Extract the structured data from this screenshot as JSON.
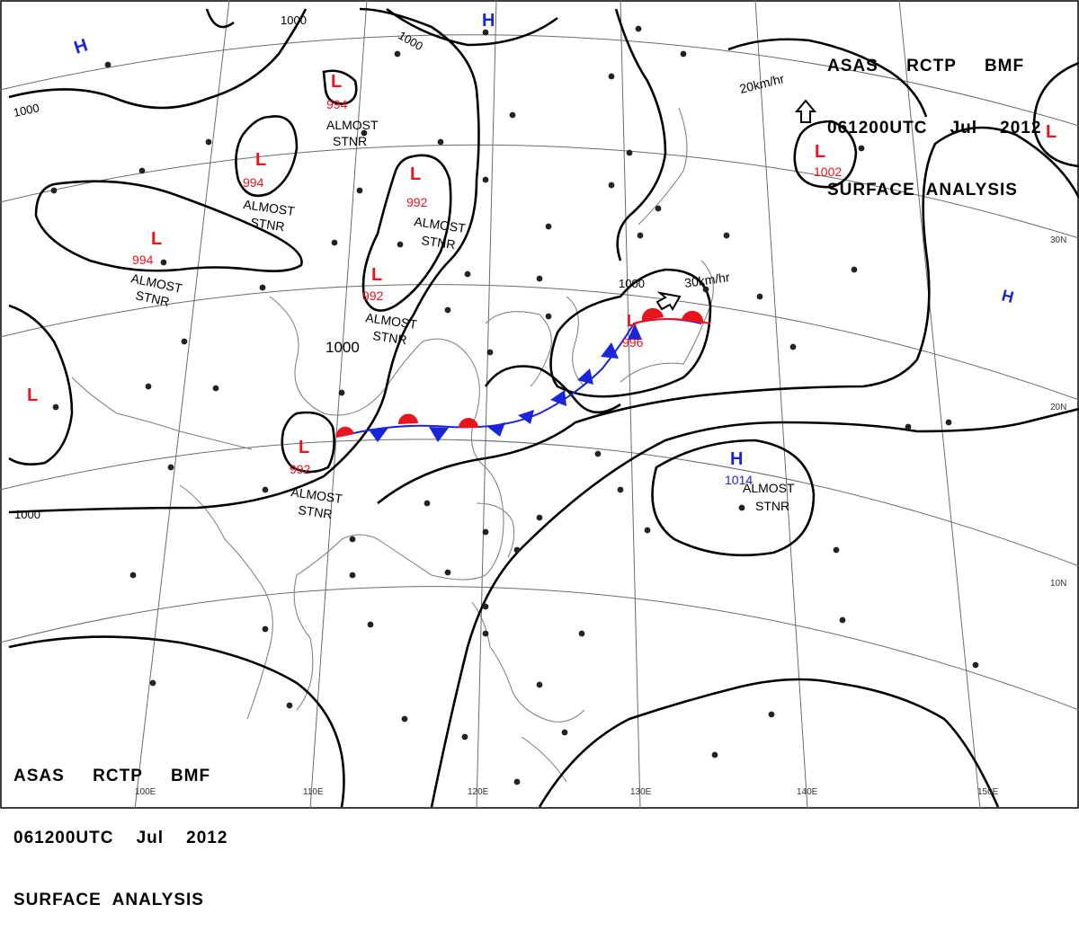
{
  "header_top": {
    "line1": "ASAS     RCTP     BMF",
    "line2": "061200UTC    Jul    2012",
    "line3": "SURFACE  ANALYSIS"
  },
  "header_bottom": {
    "line1": "ASAS     RCTP     BMF",
    "line2": "061200UTC    Jul    2012",
    "line3": "SURFACE  ANALYSIS"
  },
  "isobar_labels": [
    "1000",
    "1000",
    "1000",
    "1000",
    "1000"
  ],
  "lows": [
    {
      "id": "low-west",
      "letter": "L",
      "pressure": "994"
    },
    {
      "id": "low-north",
      "letter": "L",
      "pressure": "994"
    },
    {
      "id": "low-mongolia",
      "letter": "L",
      "pressure": "994"
    },
    {
      "id": "low-central-north",
      "letter": "L",
      "pressure": "992"
    },
    {
      "id": "low-central",
      "letter": "L",
      "pressure": "992"
    },
    {
      "id": "low-southwest",
      "letter": "L",
      "pressure": "992"
    },
    {
      "id": "low-korea",
      "letter": "L",
      "pressure": "996"
    },
    {
      "id": "low-pacific",
      "letter": "L",
      "pressure": "1002"
    },
    {
      "id": "low-far-west",
      "letter": "L",
      "pressure": ""
    },
    {
      "id": "low-far-east",
      "letter": "L",
      "pressure": ""
    }
  ],
  "highs": [
    {
      "id": "high-nw",
      "letter": "H",
      "pressure": ""
    },
    {
      "id": "high-north",
      "letter": "H",
      "pressure": ""
    },
    {
      "id": "high-pacific",
      "letter": "H",
      "pressure": "1014"
    },
    {
      "id": "high-east",
      "letter": "H",
      "pressure": ""
    }
  ],
  "stationary_notes": [
    "ALMOST",
    "STNR"
  ],
  "motion_labels": [
    "20km/hr",
    "30km/hr"
  ],
  "longitude_labels": [
    "100E",
    "110E",
    "120E",
    "130E",
    "140E",
    "150E"
  ],
  "latitude_labels": [
    "30N",
    "20N",
    "10N"
  ],
  "colors": {
    "low": "#e8141e",
    "high": "#1a24d8",
    "front_warm": "#e8141e",
    "front_cold": "#1a24d8",
    "isobar": "#000000",
    "coast": "#7a7a7a",
    "grid": "#555555"
  }
}
